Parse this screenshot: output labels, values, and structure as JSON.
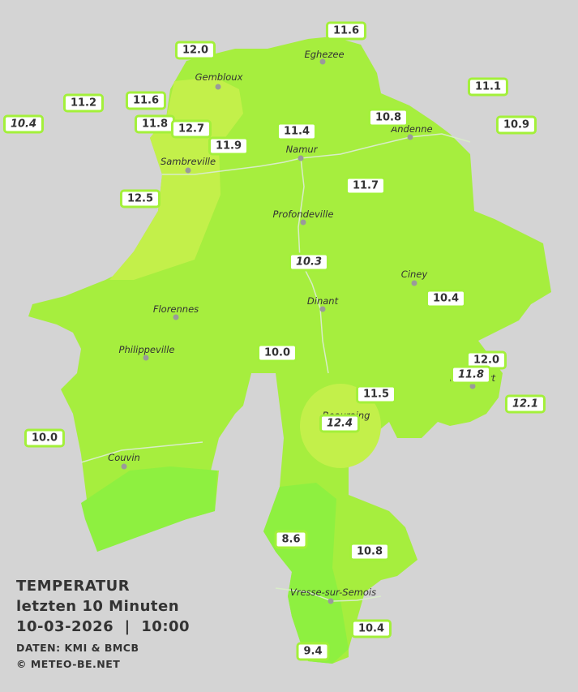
{
  "title": "TEMPERATUR",
  "subtitle": "letzten 10 Minuten",
  "datetime": "10-03-2026  |  10:00",
  "source": "DATEN: KMI & BMCB",
  "copyright": "© METEO-BE.NET",
  "cities": [
    "Eghezee",
    "Gembloux",
    "Andenne",
    "Namur",
    "Sambreville",
    "Profondeville",
    "Ciney",
    "Florennes",
    "Dinant",
    "Philippeville",
    "Rochefort",
    "Beauraing",
    "Couvin",
    "Vresse-sur-Semois"
  ],
  "readings": [
    "11.6",
    "12.0",
    "11.1",
    "11.2",
    "11.6",
    "10.4",
    "11.8",
    "12.7",
    "10.8",
    "10.9",
    "11.4",
    "11.9",
    "11.7",
    "12.5",
    "10.3",
    "10.4",
    "10.0",
    "12.0",
    "11.8",
    "11.5",
    "12.1",
    "12.4",
    "10.0",
    "8.6",
    "10.8",
    "10.4",
    "9.4"
  ]
}
